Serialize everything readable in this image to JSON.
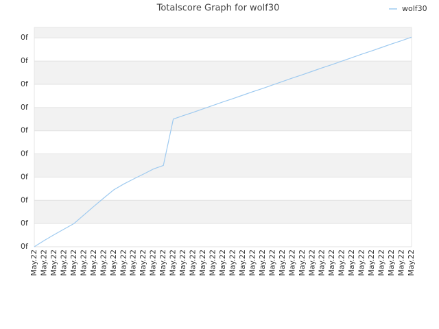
{
  "chart_data": {
    "type": "line",
    "title": "Totalscore Graph for wolf30",
    "categories": [
      "May.22",
      "May.22",
      "May.22",
      "May.22",
      "May.22",
      "May.22",
      "May.22",
      "May.22",
      "May.22",
      "May.22",
      "May.22",
      "May.22",
      "May.22",
      "May.22",
      "May.22",
      "May.22",
      "May.22",
      "May.22",
      "May.22",
      "May.22",
      "May.22",
      "May.22",
      "May.22",
      "May.22",
      "May.22",
      "May.22",
      "May.22",
      "May.22",
      "May.22",
      "May.22",
      "May.22",
      "May.22",
      "May.22",
      "May.22",
      "May.22",
      "May.22",
      "May.22",
      "May.22",
      "May.22"
    ],
    "series": [
      {
        "name": "wolf30",
        "color": "#9ecaf0",
        "values": [
          0,
          0.27,
          0.52,
          0.76,
          1.0,
          1.37,
          1.74,
          2.1,
          2.45,
          2.7,
          2.92,
          3.13,
          3.35,
          3.5,
          5.5,
          5.65,
          5.79,
          5.94,
          6.09,
          6.24,
          6.38,
          6.53,
          6.68,
          6.82,
          6.97,
          7.12,
          7.27,
          7.41,
          7.56,
          7.71,
          7.85,
          8.0,
          8.15,
          8.3,
          8.44,
          8.59,
          8.74,
          8.88,
          9.03
        ]
      }
    ],
    "ylim": [
      0,
      9.45
    ],
    "yticks": [
      {
        "value": 0,
        "label": "0f"
      },
      {
        "value": 1,
        "label": "0f"
      },
      {
        "value": 2,
        "label": "0f"
      },
      {
        "value": 3,
        "label": "0f"
      },
      {
        "value": 4,
        "label": "0f"
      },
      {
        "value": 5,
        "label": "0f"
      },
      {
        "value": 6,
        "label": "0f"
      },
      {
        "value": 7,
        "label": "0f"
      },
      {
        "value": 8,
        "label": "0f"
      },
      {
        "value": 9,
        "label": "0f"
      }
    ],
    "grid": true,
    "legend": "top-right"
  }
}
